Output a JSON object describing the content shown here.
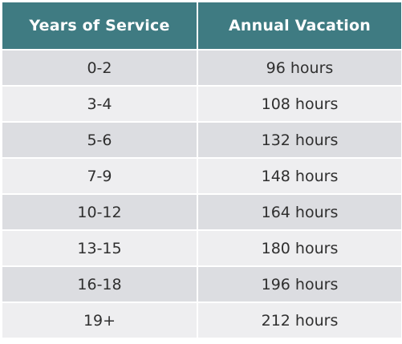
{
  "table": {
    "headers": [
      "Years of Service",
      "Annual Vacation"
    ],
    "rows": [
      [
        "0-2",
        "96 hours"
      ],
      [
        "3-4",
        "108 hours"
      ],
      [
        "5-6",
        "132 hours"
      ],
      [
        "7-9",
        "148 hours"
      ],
      [
        "10-12",
        "164 hours"
      ],
      [
        "13-15",
        "180 hours"
      ],
      [
        "16-18",
        "196 hours"
      ],
      [
        "19+",
        "212 hours"
      ]
    ]
  },
  "colors": {
    "header_background": "#3f7b82",
    "header_text": "#ffffff",
    "row_odd": "#dcdde1",
    "row_even": "#eeeef0"
  }
}
